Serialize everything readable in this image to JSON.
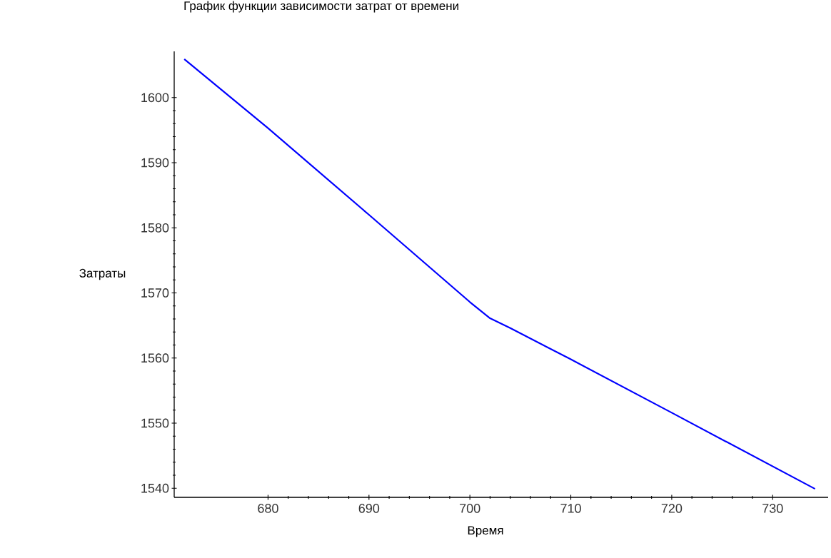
{
  "chart_data": {
    "type": "line",
    "title": "График функции зависимости затрат от времени",
    "xlabel": "Время",
    "ylabel": "Затраты",
    "series": [
      {
        "color": "#0000ff",
        "x": [
          671.7,
          680,
          690,
          700,
          702,
          704,
          710,
          720,
          734.2
        ],
        "values": [
          1605.9,
          1595.3,
          1582,
          1568.6,
          1566.1,
          1564.6,
          1559.8,
          1551.6,
          1539.9
        ]
      }
    ],
    "xlim": [
      670.7,
      735.5
    ],
    "ylim": [
      1538.6,
      1607.1
    ],
    "xticks": [
      680,
      690,
      700,
      710,
      720,
      730
    ],
    "yticks": [
      1540,
      1550,
      1560,
      1570,
      1580,
      1590,
      1600
    ]
  }
}
